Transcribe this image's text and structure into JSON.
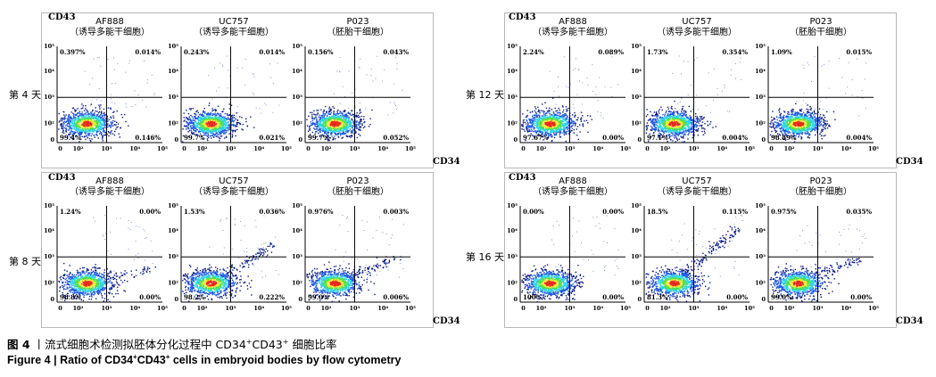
{
  "chart_data": {
    "type": "scatter",
    "xlabel": "CD34",
    "ylabel": "CD43",
    "x_tick_labels": [
      "0",
      "10²",
      "10³",
      "10⁴",
      "10⁵"
    ],
    "y_tick_labels": [
      "0",
      "10²",
      "10³",
      "10⁴",
      "10⁵"
    ],
    "cell_lines": [
      {
        "name": "AF888",
        "type_label": "（诱导多能干细胞）"
      },
      {
        "name": "UC757",
        "type_label": "（诱导多能干细胞）"
      },
      {
        "name": "P023",
        "type_label": "（胚胎干细胞）"
      }
    ],
    "days": [
      {
        "label": "第 4 天",
        "panels": [
          {
            "q_upper_left": "0.397%",
            "q_upper_right": "0.014%",
            "q_lower_left": "99.4%",
            "q_lower_right": "0.146%"
          },
          {
            "q_upper_left": "0.243%",
            "q_upper_right": "0.014%",
            "q_lower_left": "99.7%",
            "q_lower_right": "0.021%"
          },
          {
            "q_upper_left": "0.156%",
            "q_upper_right": "0.043%",
            "q_lower_left": "99.7%",
            "q_lower_right": "0.052%"
          }
        ]
      },
      {
        "label": "第 8 天",
        "panels": [
          {
            "q_upper_left": "1.24%",
            "q_upper_right": "0.00%",
            "q_lower_left": "98.8%",
            "q_lower_right": "0.00%"
          },
          {
            "q_upper_left": "1.53%",
            "q_upper_right": "0.036%",
            "q_lower_left": "98.2%",
            "q_lower_right": "0.222%"
          },
          {
            "q_upper_left": "0.976%",
            "q_upper_right": "0.003%",
            "q_lower_left": "99.0%",
            "q_lower_right": "0.006%"
          }
        ]
      },
      {
        "label": "第 12 天",
        "panels": [
          {
            "q_upper_left": "2.24%",
            "q_upper_right": "0.089%",
            "q_lower_left": "97.67%",
            "q_lower_right": "0.00%"
          },
          {
            "q_upper_left": "1.73%",
            "q_upper_right": "0.354%",
            "q_lower_left": "97.1%",
            "q_lower_right": "0.004%"
          },
          {
            "q_upper_left": "1.09%",
            "q_upper_right": "0.015%",
            "q_lower_left": "98.89%",
            "q_lower_right": "0.004%"
          }
        ]
      },
      {
        "label": "第 16 天",
        "panels": [
          {
            "q_upper_left": "0.00%",
            "q_upper_right": "0.00%",
            "q_lower_left": "100%",
            "q_lower_right": "0.00%"
          },
          {
            "q_upper_left": "18.5%",
            "q_upper_right": "0.115%",
            "q_lower_left": "81.3%",
            "q_lower_right": "0.00%"
          },
          {
            "q_upper_left": "0.975%",
            "q_upper_right": "0.035%",
            "q_lower_left": "99.0%",
            "q_lower_right": "0.00%"
          }
        ]
      }
    ],
    "density_colors": [
      "#0a1a8a",
      "#1f55e0",
      "#2fd3e8",
      "#4fe04a",
      "#f3e83a",
      "#e8281f"
    ]
  },
  "caption": {
    "cn_prefix": "图 4",
    "cn_sep": "丨",
    "cn_text_1": "流式细胞术检测拟胚体分化过程中 CD34",
    "cn_sup_1": "+",
    "cn_text_2": "CD43",
    "cn_sup_2": "+",
    "cn_text_3": " 细胞比率",
    "en_prefix": "Figure 4",
    "en_sep": "|",
    "en_text_1": "Ratio of CD34",
    "en_sup_1": "+",
    "en_text_2": "CD43",
    "en_sup_2": "+",
    "en_text_3": " cells in embryoid bodies by flow cytometry"
  }
}
